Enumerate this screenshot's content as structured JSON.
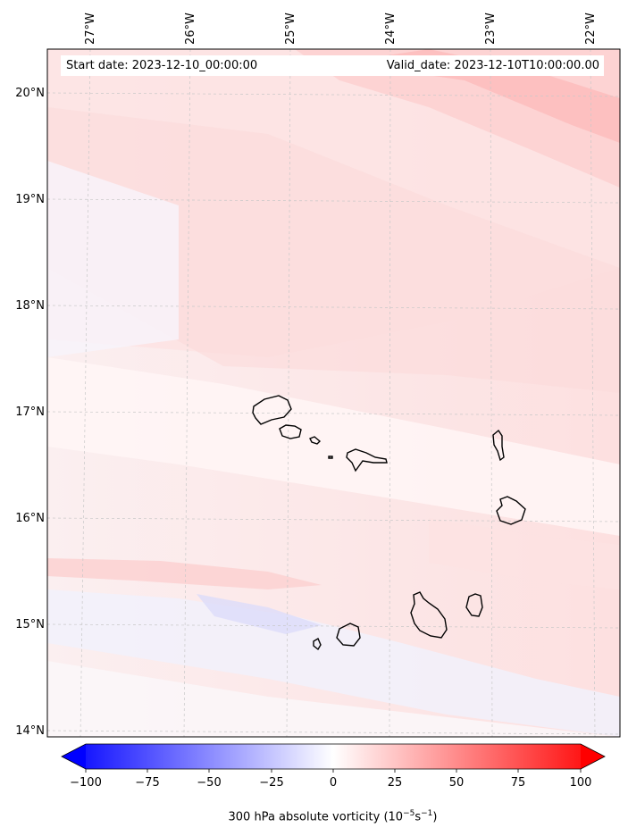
{
  "header": {
    "start_date": "Start date: 2023-12-10_00:00:00",
    "valid_date": "Valid_date: 2023-12-10T10:00:00.00"
  },
  "map": {
    "lon_labels": [
      "27°W",
      "26°W",
      "25°W",
      "24°W",
      "23°W",
      "22°W"
    ],
    "lat_labels": [
      "20°N",
      "19°N",
      "18°N",
      "17°N",
      "16°N",
      "15°N",
      "14°N"
    ],
    "islands": [
      "Santo Antão",
      "São Vicente",
      "Santa Luzia",
      "Branco",
      "São Nicolau",
      "Sal",
      "Boa Vista",
      "Santiago",
      "Maio",
      "Fogo",
      "Brava"
    ]
  },
  "colorbar": {
    "ticks": [
      "−100",
      "−75",
      "−50",
      "−25",
      "0",
      "25",
      "50",
      "75",
      "100"
    ],
    "title_main": "300 hPa absolute vorticity (10",
    "title_exp1": "−5",
    "title_mid": "s",
    "title_exp2": "−1",
    "title_end": ")",
    "min_color": "#0000ff",
    "mid_color": "#ffffff",
    "max_color": "#ff0000"
  }
}
